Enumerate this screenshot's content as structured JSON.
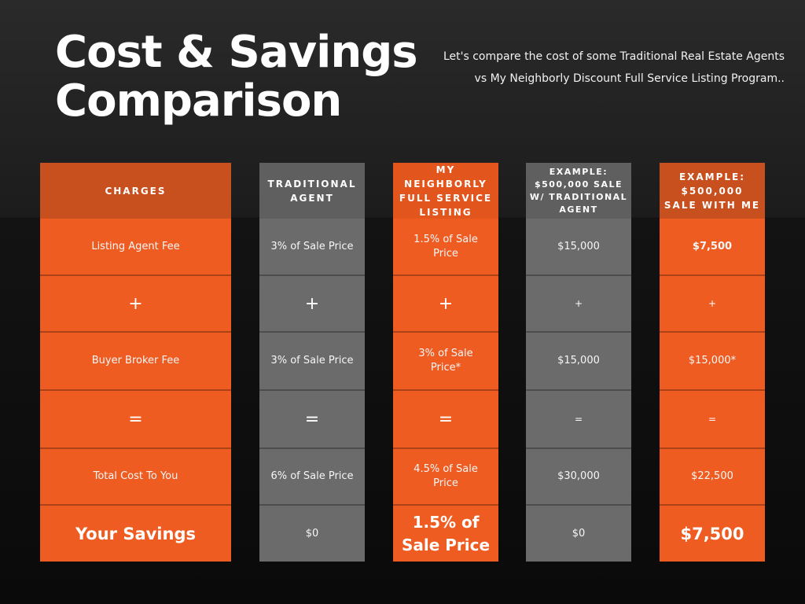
{
  "title": "Cost & Savings Comparison",
  "intro": "Let's compare the cost of some Traditional Real Estate Agents vs My Neighborly Discount Full Service Listing Program..",
  "columns": {
    "charges": {
      "header": "CHARGES",
      "rows": [
        "Listing Agent Fee",
        "+",
        "Buyer Broker Fee",
        "=",
        "Total Cost To You",
        "Your Savings"
      ]
    },
    "traditional": {
      "header": "TRADITIONAL AGENT",
      "rows": [
        "3% of Sale Price",
        "+",
        "3% of Sale Price",
        "=",
        "6% of Sale Price",
        "$0"
      ]
    },
    "neighborly": {
      "header": "MY NEIGHBORLY FULL SERVICE LISTING",
      "rows": [
        "1.5% of Sale Price",
        "+",
        "3% of Sale Price*",
        "=",
        "4.5% of Sale Price",
        "1.5% of Sale Price"
      ]
    },
    "example_traditional": {
      "header": "EXAMPLE: $500,000 SALE W/ TRADITIONAL AGENT",
      "rows": [
        "$15,000",
        "+",
        "$15,000",
        "=",
        "$30,000",
        "$0"
      ]
    },
    "example_me": {
      "header": "EXAMPLE: $500,000 SALE WITH ME",
      "rows": [
        "$7,500",
        "+",
        "$15,000*",
        "=",
        "$22,500",
        "$7,500"
      ]
    }
  },
  "colors": {
    "orange": "#ee5c22",
    "gray": "#6b6b6b",
    "header_orange": "#c8501f",
    "header_gray": "#5f5f5f"
  }
}
